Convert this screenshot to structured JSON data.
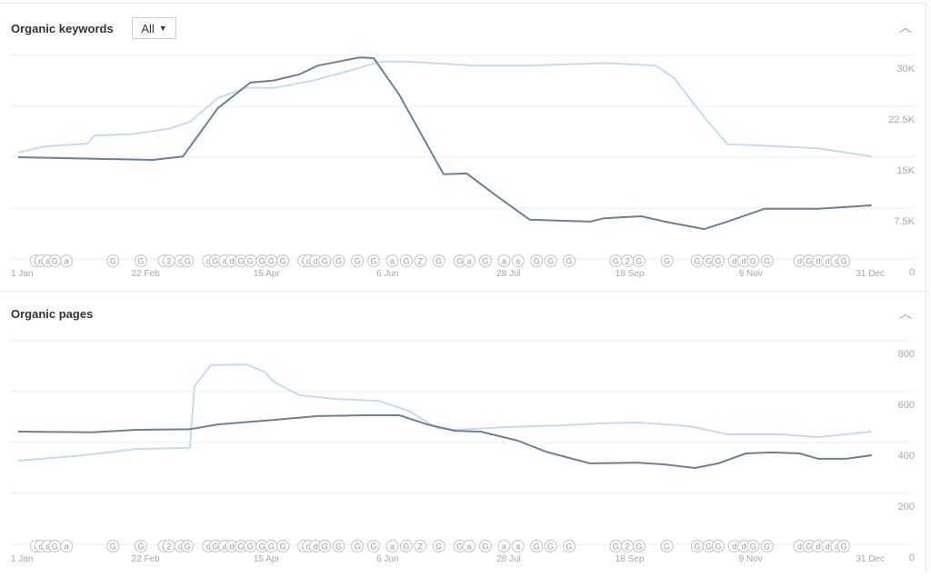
{
  "panels": [
    {
      "title": "Organic keywords",
      "filter": "All",
      "collapse_icon": "chevron-up-icon"
    },
    {
      "title": "Organic pages",
      "collapse_icon": "chevron-up-icon"
    }
  ],
  "colors": {
    "current": "#6d8096",
    "previous": "#c8dbee",
    "grid": "#ececec",
    "axis_text": "#a8a8a8",
    "marker": "#c4c4c4"
  },
  "chart_data": [
    {
      "type": "line",
      "title": "Organic keywords",
      "x_unit": "day of year",
      "xlim": [
        0,
        364
      ],
      "x_ticks": [
        {
          "day": 0,
          "label": "1 Jan"
        },
        {
          "day": 52,
          "label": "22 Feb"
        },
        {
          "day": 104,
          "label": "15 Apr"
        },
        {
          "day": 156,
          "label": "6 Jun"
        },
        {
          "day": 208,
          "label": "28 Jul"
        },
        {
          "day": 260,
          "label": "18 Sep"
        },
        {
          "day": 312,
          "label": "9 Nov"
        },
        {
          "day": 364,
          "label": "31 Dec"
        }
      ],
      "ylim": [
        0,
        30000
      ],
      "y_ticks": [
        {
          "value": 0,
          "label": "0"
        },
        {
          "value": 7500,
          "label": "7.5K"
        },
        {
          "value": 15000,
          "label": "15K"
        },
        {
          "value": 22500,
          "label": "22.5K"
        },
        {
          "value": 30000,
          "label": "30K"
        }
      ],
      "grid": true,
      "series": [
        {
          "name": "current",
          "points": [
            [
              0,
              15000
            ],
            [
              55,
              14600
            ],
            [
              68,
              15100
            ],
            [
              83,
              22200
            ],
            [
              97,
              26000
            ],
            [
              107,
              26300
            ],
            [
              118,
              27200
            ],
            [
              126,
              28500
            ],
            [
              144,
              29700
            ],
            [
              150,
              29600
            ],
            [
              161,
              24200
            ],
            [
              180,
              12500
            ],
            [
              190,
              12600
            ],
            [
              202,
              9500
            ],
            [
              217,
              5800
            ],
            [
              243,
              5500
            ],
            [
              249,
              6000
            ],
            [
              265,
              6300
            ],
            [
              275,
              5500
            ],
            [
              292,
              4400
            ],
            [
              302,
              5500
            ],
            [
              318,
              7400
            ],
            [
              341,
              7400
            ],
            [
              364,
              7900
            ]
          ]
        },
        {
          "name": "previous",
          "points": [
            [
              0,
              15700
            ],
            [
              9,
              16600
            ],
            [
              27,
              17000
            ],
            [
              30,
              18200
            ],
            [
              46,
              18400
            ],
            [
              62,
              19200
            ],
            [
              71,
              20200
            ],
            [
              83,
              23700
            ],
            [
              95,
              25200
            ],
            [
              107,
              25200
            ],
            [
              124,
              26300
            ],
            [
              138,
              27600
            ],
            [
              153,
              29100
            ],
            [
              165,
              29100
            ],
            [
              193,
              28500
            ],
            [
              216,
              28500
            ],
            [
              243,
              28800
            ],
            [
              249,
              28900
            ],
            [
              271,
              28500
            ],
            [
              279,
              26700
            ],
            [
              292,
              20900
            ],
            [
              302,
              16900
            ],
            [
              325,
              16600
            ],
            [
              341,
              16300
            ],
            [
              364,
              15100
            ]
          ]
        }
      ]
    },
    {
      "type": "line",
      "title": "Organic pages",
      "x_unit": "day of year",
      "xlim": [
        0,
        364
      ],
      "x_ticks": [
        {
          "day": 0,
          "label": "1 Jan"
        },
        {
          "day": 52,
          "label": "22 Feb"
        },
        {
          "day": 104,
          "label": "15 Apr"
        },
        {
          "day": 156,
          "label": "6 Jun"
        },
        {
          "day": 208,
          "label": "28 Jul"
        },
        {
          "day": 260,
          "label": "18 Sep"
        },
        {
          "day": 312,
          "label": "9 Nov"
        },
        {
          "day": 364,
          "label": "31 Dec"
        }
      ],
      "ylim": [
        0,
        800
      ],
      "y_ticks": [
        {
          "value": 0,
          "label": "0"
        },
        {
          "value": 200,
          "label": "200"
        },
        {
          "value": 400,
          "label": "400"
        },
        {
          "value": 600,
          "label": "600"
        },
        {
          "value": 800,
          "label": "800"
        }
      ],
      "grid": true,
      "series": [
        {
          "name": "current",
          "points": [
            [
              0,
              443
            ],
            [
              29,
              440
            ],
            [
              48,
              450
            ],
            [
              71,
              452
            ],
            [
              83,
              471
            ],
            [
              107,
              489
            ],
            [
              126,
              504
            ],
            [
              146,
              507
            ],
            [
              161,
              507
            ],
            [
              173,
              471
            ],
            [
              185,
              446
            ],
            [
              196,
              443
            ],
            [
              212,
              407
            ],
            [
              224,
              364
            ],
            [
              243,
              318
            ],
            [
              263,
              321
            ],
            [
              275,
              314
            ],
            [
              288,
              300
            ],
            [
              298,
              318
            ],
            [
              310,
              357
            ],
            [
              321,
              361
            ],
            [
              333,
              357
            ],
            [
              341,
              336
            ],
            [
              353,
              336
            ],
            [
              364,
              350
            ]
          ]
        },
        {
          "name": "previous",
          "points": [
            [
              0,
              329
            ],
            [
              21,
              346
            ],
            [
              36,
              361
            ],
            [
              48,
              375
            ],
            [
              71,
              379
            ],
            [
              73,
              621
            ],
            [
              80,
              704
            ],
            [
              95,
              707
            ],
            [
              103,
              679
            ],
            [
              107,
              639
            ],
            [
              118,
              586
            ],
            [
              134,
              571
            ],
            [
              152,
              564
            ],
            [
              165,
              525
            ],
            [
              177,
              457
            ],
            [
              185,
              450
            ],
            [
              208,
              461
            ],
            [
              232,
              468
            ],
            [
              247,
              475
            ],
            [
              263,
              479
            ],
            [
              286,
              464
            ],
            [
              302,
              432
            ],
            [
              325,
              432
            ],
            [
              341,
              421
            ],
            [
              364,
              443
            ]
          ]
        }
      ]
    }
  ],
  "event_markers": [
    [
      5,
      "d"
    ],
    [
      7,
      "d"
    ],
    [
      10,
      "a"
    ],
    [
      13,
      "G"
    ],
    [
      18,
      "a"
    ],
    [
      38,
      "G"
    ],
    [
      50,
      "G"
    ],
    [
      60,
      "d"
    ],
    [
      62,
      "2"
    ],
    [
      67,
      "d"
    ],
    [
      70,
      "G"
    ],
    [
      79,
      "d"
    ],
    [
      82,
      "G"
    ],
    [
      86,
      "a"
    ],
    [
      89,
      "d"
    ],
    [
      93,
      "G"
    ],
    [
      97,
      "G"
    ],
    [
      102,
      "G"
    ],
    [
      106,
      "G"
    ],
    [
      111,
      "G"
    ],
    [
      120,
      "d"
    ],
    [
      122,
      "d"
    ],
    [
      125,
      "d"
    ],
    [
      129,
      "G"
    ],
    [
      135,
      "G"
    ],
    [
      143,
      "G"
    ],
    [
      150,
      "G"
    ],
    [
      158,
      "a"
    ],
    [
      164,
      "G"
    ],
    [
      170,
      "Z"
    ],
    [
      178,
      "G"
    ],
    [
      187,
      "G"
    ],
    [
      191,
      "a"
    ],
    [
      198,
      "G"
    ],
    [
      206,
      "a"
    ],
    [
      212,
      "a"
    ],
    [
      220,
      "G"
    ],
    [
      226,
      "G"
    ],
    [
      234,
      "G"
    ],
    [
      254,
      "G"
    ],
    [
      259,
      "2"
    ],
    [
      264,
      "G"
    ],
    [
      276,
      "G"
    ],
    [
      289,
      "G"
    ],
    [
      294,
      "G"
    ],
    [
      298,
      "G"
    ],
    [
      305,
      "d"
    ],
    [
      309,
      "d"
    ],
    [
      313,
      "G"
    ],
    [
      319,
      "G"
    ],
    [
      333,
      "d"
    ],
    [
      337,
      "G"
    ],
    [
      341,
      "d"
    ],
    [
      345,
      "d"
    ],
    [
      349,
      "d"
    ],
    [
      352,
      "G"
    ]
  ]
}
